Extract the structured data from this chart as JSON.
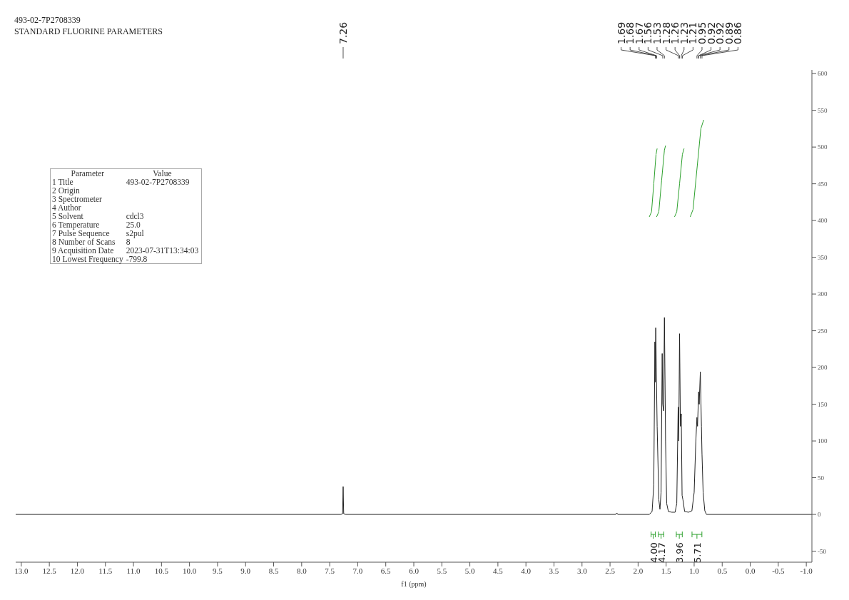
{
  "chart_data": {
    "type": "line",
    "title": "493-02-7P2708339",
    "subtitle": "STANDARD FLUORINE PARAMETERS",
    "xlabel": "f1 (ppm)",
    "xlim": [
      13.1,
      -1.1
    ],
    "ylim": [
      -65,
      605
    ],
    "xticks": [
      {
        "value": 13,
        "label": "13.0"
      },
      12.5,
      {
        "value": 12,
        "label": "12.0"
      },
      11.5,
      {
        "value": 11,
        "label": "11.0"
      },
      10.5,
      {
        "value": 10,
        "label": "10.0"
      },
      9.5,
      {
        "value": 9,
        "label": "9.0"
      },
      8.5,
      {
        "value": 8,
        "label": "8.0"
      },
      7.5,
      {
        "value": 7,
        "label": "7.0"
      },
      6.5,
      {
        "value": 6,
        "label": "6.0"
      },
      5.5,
      {
        "value": 5,
        "label": "5.0"
      },
      4.5,
      {
        "value": 4,
        "label": "4.0"
      },
      3.5,
      {
        "value": 3,
        "label": "3.0"
      },
      2.5,
      {
        "value": 2,
        "label": "2.0"
      },
      1.5,
      {
        "value": 1,
        "label": "1.0"
      },
      0.5,
      {
        "value": 0,
        "label": "0.0"
      },
      -0.5,
      {
        "value": -1,
        "label": "-1.0"
      }
    ],
    "yticks": [
      -50,
      0,
      50,
      100,
      150,
      200,
      250,
      300,
      350,
      400,
      450,
      500,
      550,
      600
    ],
    "grid": false,
    "marker": "none",
    "legend": "bottom",
    "line_style": "solid",
    "series": [
      {
        "color": "#222222",
        "x": [
          13.1,
          7.3,
          7.27,
          7.26,
          7.25,
          7.22,
          2.4,
          2.38,
          2.36,
          1.8,
          1.75,
          1.72,
          1.7,
          1.695,
          1.685,
          1.675,
          1.66,
          1.63,
          1.61,
          1.59,
          1.57,
          1.56,
          1.545,
          1.53,
          1.51,
          1.49,
          1.46,
          1.4,
          1.34,
          1.31,
          1.285,
          1.275,
          1.26,
          1.245,
          1.23,
          1.215,
          1.2,
          1.17,
          1.1,
          1.04,
          1.0,
          0.97,
          0.95,
          0.94,
          0.92,
          0.91,
          0.89,
          0.87,
          0.86,
          0.84,
          0.81,
          0.78,
          -1.1
        ],
        "values": [
          0,
          0,
          1,
          38,
          1,
          0,
          0,
          2,
          0,
          0,
          4,
          40,
          235,
          180,
          254,
          200,
          120,
          20,
          7,
          30,
          219,
          150,
          141,
          268,
          100,
          15,
          4,
          3,
          3,
          15,
          146,
          100,
          246,
          120,
          137,
          26,
          20,
          4,
          3,
          5,
          30,
          100,
          132,
          120,
          167,
          150,
          194,
          120,
          82,
          30,
          5,
          0,
          0
        ]
      },
      {
        "name": "4.00",
        "color": "#2ca02c",
        "x": [
          1.8,
          1.76,
          1.72,
          1.68,
          1.66
        ],
        "values": [
          405,
          412,
          450,
          490,
          498
        ]
      },
      {
        "name": "4.17",
        "color": "#2ca02c",
        "x": [
          1.67,
          1.63,
          1.58,
          1.53,
          1.51
        ],
        "values": [
          405,
          412,
          455,
          496,
          502
        ]
      },
      {
        "name": "3.96",
        "color": "#2ca02c",
        "x": [
          1.35,
          1.31,
          1.26,
          1.21,
          1.18
        ],
        "values": [
          405,
          412,
          450,
          490,
          498
        ]
      },
      {
        "name": "5.71",
        "color": "#2ca02c",
        "x": [
          1.07,
          1.02,
          0.95,
          0.88,
          0.83
        ],
        "values": [
          405,
          415,
          470,
          525,
          537
        ]
      }
    ],
    "annotations": [
      {
        "text": "7.26",
        "x": 7.26
      },
      {
        "text": "1.69",
        "x": 1.69
      },
      {
        "text": "1.68",
        "x": 1.68
      },
      {
        "text": "1.67",
        "x": 1.67
      },
      {
        "text": "1.56",
        "x": 1.56
      },
      {
        "text": "1.53",
        "x": 1.53
      },
      {
        "text": "1.28",
        "x": 1.28
      },
      {
        "text": "1.26",
        "x": 1.26
      },
      {
        "text": "1.23",
        "x": 1.23
      },
      {
        "text": "1.21",
        "x": 1.21
      },
      {
        "text": "0.95",
        "x": 0.95
      },
      {
        "text": "0.92",
        "x": 0.92
      },
      {
        "text": "0.92",
        "x": 0.92
      },
      {
        "text": "0.89",
        "x": 0.89
      },
      {
        "text": "0.86",
        "x": 0.86
      },
      "Parameter\tValue",
      "1 Title\t493-02-7P2708339",
      "2 Origin",
      "3 Spectrometer",
      "4 Author",
      "5 Solvent\tcdcl3",
      "6 Temperature\t25.0",
      "7 Pulse Sequence\ts2pul",
      "8 Number of Scans\t8",
      "9 Acquisition Date\t2023-07-31T13:34:03",
      "10 Lowest Frequency\t-799.8"
    ]
  }
}
